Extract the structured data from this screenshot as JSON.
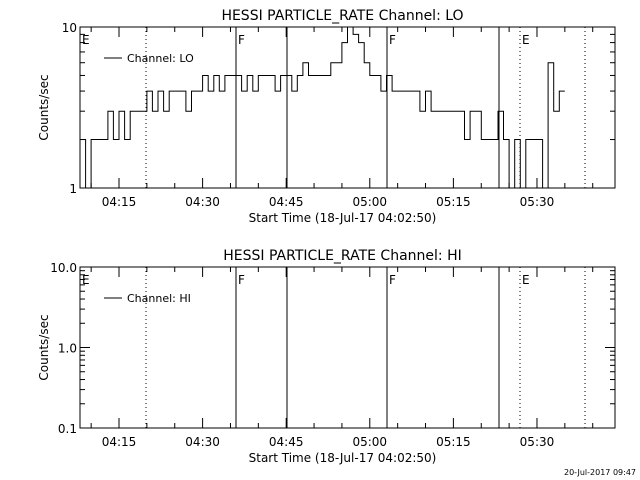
{
  "footer_timestamp": "20-Jul-2017 09:47",
  "chart_data": [
    {
      "type": "line",
      "title": "HESSI PARTICLE_RATE Channel: LO",
      "xlabel": "Start Time (18-Jul-17 04:02:50)",
      "ylabel": "Counts/sec",
      "yscale": "log",
      "ylim": [
        1,
        10
      ],
      "ytick_labels": [
        "1",
        "10"
      ],
      "xlim_minutes": [
        8,
        44
      ],
      "xtick_labels": [
        "04:15",
        "04:30",
        "04:45",
        "05:00",
        "05:15",
        "05:30"
      ],
      "legend": {
        "placement": "top-left",
        "entries": [
          "Channel: LO"
        ]
      },
      "grid": false,
      "markers": [
        {
          "label": "E",
          "style": "solid"
        },
        {
          "label": "",
          "style": "dotted"
        },
        {
          "label": "F",
          "style": "solid"
        },
        {
          "label": "",
          "style": "solid"
        },
        {
          "label": "F",
          "style": "solid"
        },
        {
          "label": "",
          "style": "solid"
        },
        {
          "label": "E",
          "style": "dotted"
        },
        {
          "label": "",
          "style": "dotted"
        }
      ],
      "series": [
        {
          "name": "Channel: LO",
          "x": [
            "04:08",
            "04:09",
            "04:10",
            "04:11",
            "04:12",
            "04:13",
            "04:14",
            "04:15",
            "04:16",
            "04:17",
            "04:18",
            "04:19",
            "04:20",
            "04:21",
            "04:22",
            "04:23",
            "04:24",
            "04:25",
            "04:26",
            "04:27",
            "04:28",
            "04:29",
            "04:30",
            "04:31",
            "04:32",
            "04:33",
            "04:34",
            "04:35",
            "04:36",
            "04:37",
            "04:38",
            "04:39",
            "04:40",
            "04:41",
            "04:42",
            "04:43",
            "04:44",
            "04:45",
            "04:46",
            "04:47",
            "04:48",
            "04:49",
            "04:50",
            "04:51",
            "04:52",
            "04:53",
            "04:54",
            "04:55",
            "04:56",
            "04:57",
            "04:58",
            "04:59",
            "05:00",
            "05:01",
            "05:02",
            "05:03",
            "05:04",
            "05:05",
            "05:06",
            "05:07",
            "05:08",
            "05:09",
            "05:10",
            "05:11",
            "05:12",
            "05:13",
            "05:14",
            "05:15",
            "05:16",
            "05:17",
            "05:18",
            "05:19",
            "05:20",
            "05:21",
            "05:22",
            "05:23",
            "05:24",
            "05:25",
            "05:26",
            "05:27",
            "05:28",
            "05:29",
            "05:30",
            "05:31",
            "05:32",
            "05:33",
            "05:34"
          ],
          "y": [
            2,
            1,
            2,
            2,
            2,
            3,
            2,
            3,
            2,
            3,
            3,
            3,
            4,
            3,
            4,
            3,
            4,
            4,
            4,
            3,
            4,
            4,
            5,
            4,
            5,
            4,
            5,
            5,
            5,
            4,
            5,
            4,
            5,
            5,
            5,
            4,
            5,
            5,
            4,
            5,
            6,
            5,
            5,
            5,
            5,
            6,
            6,
            8,
            10,
            9,
            8,
            6,
            5,
            5,
            4,
            5,
            4,
            4,
            4,
            4,
            4,
            3,
            4,
            3,
            3,
            3,
            3,
            3,
            3,
            2,
            3,
            3,
            2,
            2,
            2,
            3,
            2,
            1,
            2,
            1,
            2,
            2,
            2,
            1,
            6,
            3,
            4
          ]
        }
      ]
    },
    {
      "type": "line",
      "title": "HESSI PARTICLE_RATE Channel: HI",
      "xlabel": "Start Time (18-Jul-17 04:02:50)",
      "ylabel": "Counts/sec",
      "yscale": "log",
      "ylim": [
        0.1,
        10
      ],
      "ytick_labels": [
        "0.1",
        "1.0",
        "10.0"
      ],
      "xlim_minutes": [
        8,
        44
      ],
      "xtick_labels": [
        "04:15",
        "04:30",
        "04:45",
        "05:00",
        "05:15",
        "05:30"
      ],
      "legend": {
        "placement": "top-left",
        "entries": [
          "Channel: HI"
        ]
      },
      "grid": false,
      "markers": [
        {
          "label": "E",
          "style": "solid"
        },
        {
          "label": "",
          "style": "dotted"
        },
        {
          "label": "F",
          "style": "solid"
        },
        {
          "label": "",
          "style": "solid"
        },
        {
          "label": "F",
          "style": "solid"
        },
        {
          "label": "",
          "style": "solid"
        },
        {
          "label": "E",
          "style": "dotted"
        },
        {
          "label": "",
          "style": "dotted"
        }
      ],
      "series": [
        {
          "name": "Channel: HI",
          "x": [],
          "y": []
        }
      ]
    }
  ]
}
